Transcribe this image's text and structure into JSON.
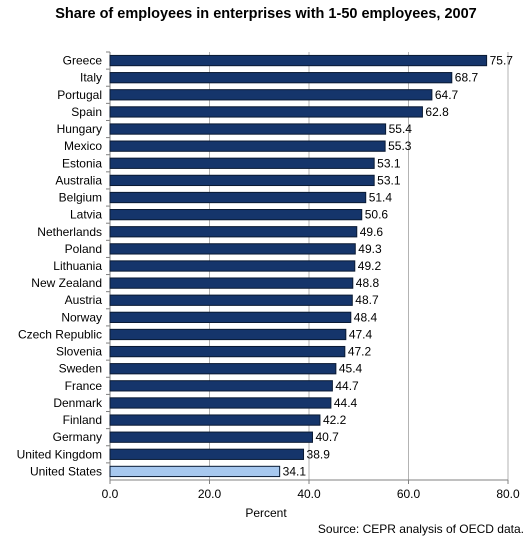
{
  "chart_data": {
    "type": "bar",
    "orientation": "horizontal",
    "title": "Share of employees in enterprises with 1-50 employees, 2007",
    "xlabel": "Percent",
    "ylabel": "",
    "xlim": [
      0,
      80
    ],
    "xticks": [
      "0.0",
      "20.0",
      "40.0",
      "60.0",
      "80.0"
    ],
    "grid": "vertical gridlines",
    "categories": [
      "Greece",
      "Italy",
      "Portugal",
      "Spain",
      "Hungary",
      "Mexico",
      "Estonia",
      "Australia",
      "Belgium",
      "Latvia",
      "Netherlands",
      "Poland",
      "Lithuania",
      "New Zealand",
      "Austria",
      "Norway",
      "Czech Republic",
      "Slovenia",
      "Sweden",
      "France",
      "Denmark",
      "Finland",
      "Germany",
      "United Kingdom",
      "United States"
    ],
    "values": [
      75.7,
      68.7,
      64.7,
      62.8,
      55.4,
      55.3,
      53.1,
      53.1,
      51.4,
      50.6,
      49.6,
      49.3,
      49.2,
      48.8,
      48.7,
      48.4,
      47.4,
      47.2,
      45.4,
      44.7,
      44.4,
      42.2,
      40.7,
      38.9,
      34.1
    ],
    "value_labels": [
      "75.7",
      "68.7",
      "64.7",
      "62.8",
      "55.4",
      "55.3",
      "53.1",
      "53.1",
      "51.4",
      "50.6",
      "49.6",
      "49.3",
      "49.2",
      "48.8",
      "48.7",
      "48.4",
      "47.4",
      "47.2",
      "45.4",
      "44.7",
      "44.4",
      "42.2",
      "40.7",
      "38.9",
      "34.1"
    ],
    "colors": {
      "default": "#15356b",
      "highlight": "#a7c8ef",
      "highlight_category": "United States",
      "bar_outline": "#0a1a33",
      "grid": "#b3b3b3",
      "axis": "#808080"
    }
  },
  "source": "Source: CEPR analysis of OECD data."
}
